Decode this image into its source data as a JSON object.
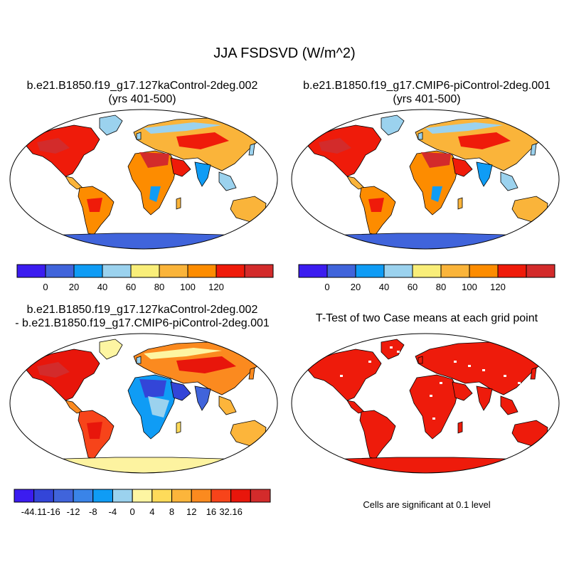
{
  "figure": {
    "title": "JJA FSDSVD (W/m^2)",
    "panels": [
      {
        "title_line1": "b.e21.B1850.f19_g17.127kaControl-2deg.002",
        "title_line2": "(yrs 401-500)"
      },
      {
        "title_line1": "b.e21.B1850.f19_g17.CMIP6-piControl-2deg.001",
        "title_line2": "(yrs 401-500)"
      },
      {
        "title_line1": "b.e21.B1850.f19_g17.127kaControl-2deg.002",
        "title_line2": "- b.e21.B1850.f19_g17.CMIP6-piControl-2deg.001"
      },
      {
        "title_line1": "T-Test of two Case means at each grid point",
        "title_line2": ""
      }
    ],
    "significance_note": "Cells are significant at 0.1 level"
  },
  "colorbars": {
    "absolute": {
      "colors": [
        "#3b1cf0",
        "#4064db",
        "#0f9cf5",
        "#9bd2ee",
        "#f9ee79",
        "#fab43a",
        "#fd8c00",
        "#ef1b0a",
        "#d32b2b"
      ],
      "labels": [
        "0",
        "20",
        "40",
        "60",
        "80",
        "100",
        "120"
      ]
    },
    "difference": {
      "colors": [
        "#3b1cf0",
        "#3345d8",
        "#4064db",
        "#3a84e8",
        "#0f9cf5",
        "#9bd2ee",
        "#fdf5a2",
        "#fedb5a",
        "#fcb53b",
        "#fb8a1f",
        "#f7441a",
        "#e8160b",
        "#d32b2b"
      ],
      "labels": [
        "-44.11",
        "-16",
        "-12",
        "-8",
        "-4",
        "0",
        "4",
        "8",
        "12",
        "16",
        "32.16"
      ]
    }
  },
  "colors": {
    "ocean": "#ffffff",
    "antarctica_abs": "#4064db",
    "antarctica_diff": "#fdf3a0",
    "significant": "#ee1b0b"
  }
}
